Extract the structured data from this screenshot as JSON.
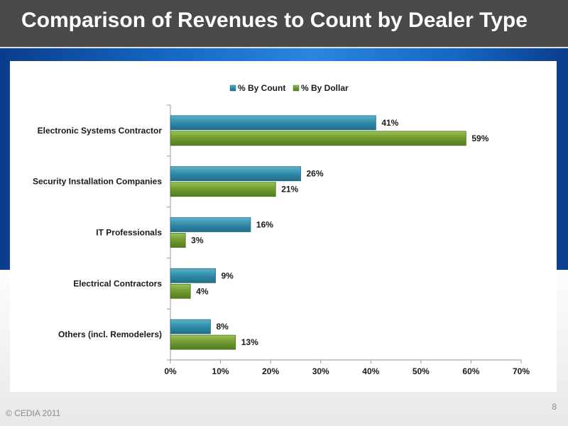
{
  "slide": {
    "title": "Comparison of Revenues to Count by Dealer Type",
    "copyright": "CEDIA 2011",
    "copyright_symbol": "©",
    "page_number": "8"
  },
  "colors": {
    "count": "#2f8ba8",
    "dollar": "#6f9a2f",
    "header_bg": "#4a4a4a"
  },
  "chart_data": {
    "type": "bar",
    "orientation": "horizontal",
    "categories": [
      "Electronic Systems Contractor",
      "Security Installation Companies",
      "IT Professionals",
      "Electrical Contractors",
      "Others (incl. Remodelers)"
    ],
    "series": [
      {
        "name": "% By Count",
        "values": [
          41,
          26,
          16,
          9,
          8
        ],
        "labels": [
          "41%",
          "26%",
          "16%",
          "9%",
          "8%"
        ]
      },
      {
        "name": "% By Dollar",
        "values": [
          59,
          21,
          3,
          4,
          13
        ],
        "labels": [
          "59%",
          "21%",
          "3%",
          "4%",
          "13%"
        ]
      }
    ],
    "xlim": [
      0,
      70
    ],
    "xticks": [
      "0%",
      "10%",
      "20%",
      "30%",
      "40%",
      "50%",
      "60%",
      "70%"
    ],
    "legend_position": "top",
    "grid": false
  }
}
